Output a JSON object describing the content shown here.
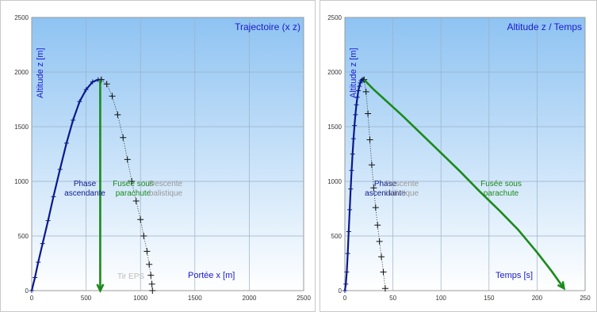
{
  "chart_data": [
    {
      "type": "line",
      "title": "Trajectoire (x z)",
      "xlabel": "Portée x [m]",
      "ylabel": "Altitude z [m]",
      "xlim": [
        0,
        2500
      ],
      "ylim": [
        0,
        2500
      ],
      "xticks": [
        "0",
        "500",
        "1000",
        "1500",
        "2000",
        "2500"
      ],
      "yticks": [
        "0",
        "500",
        "1000",
        "1500",
        "2000",
        "2500"
      ],
      "grid": true,
      "annotations": [
        "Phase",
        "ascendante",
        "Fusée sous",
        "parachute",
        "Descente",
        "balistique",
        "Tir EPS"
      ],
      "colors": {
        "ascent": "#0a1a8c",
        "ballistic": "#111111",
        "parachute": "#1a8a1a",
        "annotation_ballistic": "#999999",
        "annotation_tir": "#bbbbbb"
      },
      "series": [
        {
          "x": [
            0,
            30,
            60,
            100,
            150,
            200,
            260,
            320,
            380,
            440,
            500,
            560,
            610,
            640
          ],
          "y": [
            0,
            120,
            260,
            430,
            640,
            860,
            1110,
            1350,
            1560,
            1730,
            1840,
            1910,
            1930,
            1930
          ]
        },
        {
          "x": [
            640,
            690,
            740,
            790,
            840,
            880,
            920,
            960,
            1000,
            1030,
            1060,
            1080,
            1095,
            1105,
            1110
          ],
          "y": [
            1930,
            1890,
            1780,
            1610,
            1400,
            1200,
            1000,
            820,
            650,
            500,
            360,
            240,
            140,
            60,
            0
          ]
        },
        {
          "x": [
            630,
            630,
            630
          ],
          "y": [
            1930,
            1000,
            0
          ]
        }
      ]
    },
    {
      "type": "line",
      "title": "Altitude z / Temps",
      "xlabel": "Temps [s]",
      "ylabel": "Altitude z [m]",
      "xlim": [
        0,
        250
      ],
      "ylim": [
        0,
        2500
      ],
      "xticks": [
        "0",
        "50",
        "100",
        "150",
        "200",
        "250"
      ],
      "yticks": [
        "0",
        "500",
        "1000",
        "1500",
        "2000",
        "2500"
      ],
      "grid": true,
      "annotations": [
        "Phase",
        "ascendante",
        "Descente",
        "balistique",
        "Fusée sous",
        "parachute"
      ],
      "colors": {
        "ascent": "#0a1a8c",
        "ballistic": "#111111",
        "parachute": "#1a8a1a",
        "annotation_ballistic": "#999999"
      },
      "series": [
        {
          "x": [
            0,
            1,
            2,
            3,
            4,
            5,
            6,
            7,
            8,
            9,
            10,
            11,
            12,
            13,
            14,
            15,
            16,
            17,
            18,
            19,
            20
          ],
          "y": [
            0,
            60,
            170,
            340,
            540,
            740,
            930,
            1100,
            1250,
            1390,
            1510,
            1610,
            1700,
            1770,
            1830,
            1870,
            1900,
            1920,
            1930,
            1930,
            1930
          ]
        },
        {
          "x": [
            20,
            22,
            24,
            26,
            28,
            30,
            32,
            34,
            36,
            38,
            40,
            42
          ],
          "y": [
            1930,
            1820,
            1620,
            1380,
            1150,
            940,
            760,
            600,
            450,
            310,
            170,
            20
          ]
        },
        {
          "x": [
            20,
            30,
            45,
            60,
            80,
            100,
            120,
            140,
            160,
            180,
            200,
            215,
            228
          ],
          "y": [
            1930,
            1840,
            1720,
            1600,
            1430,
            1260,
            1090,
            910,
            740,
            560,
            350,
            180,
            20
          ]
        }
      ]
    }
  ]
}
